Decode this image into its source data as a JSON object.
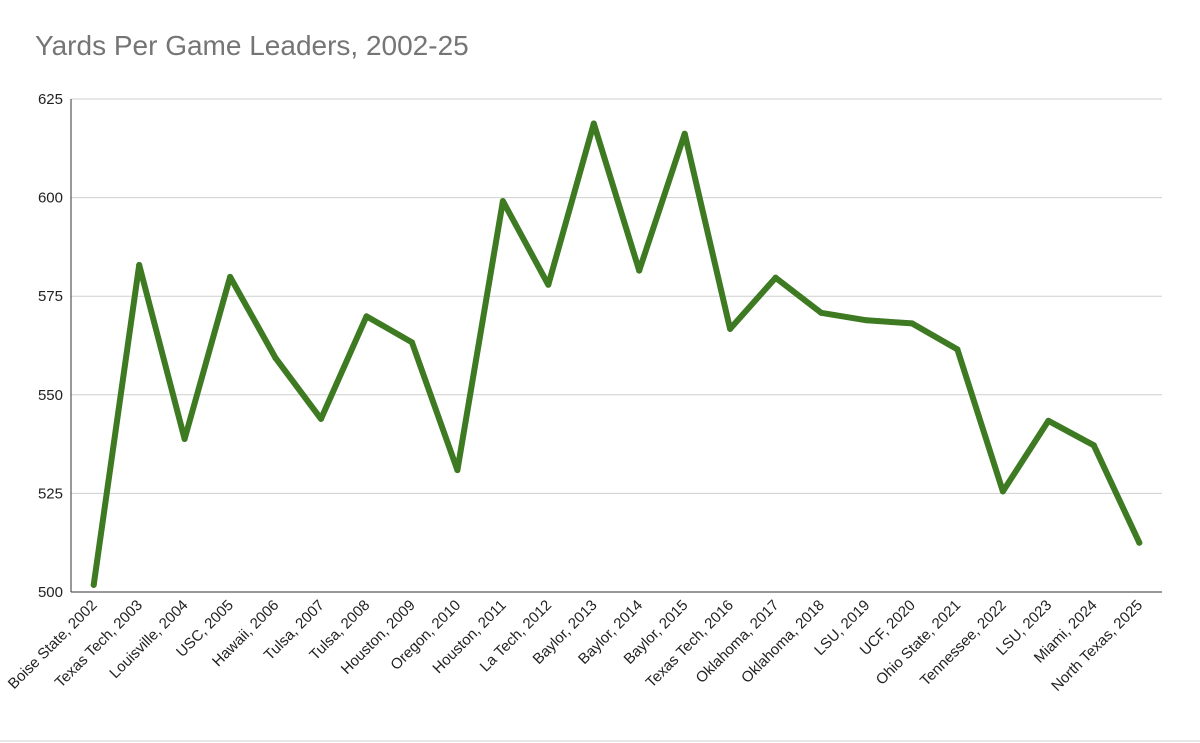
{
  "chart_data": {
    "type": "line",
    "title": "Yards Per Game Leaders, 2002-25",
    "xlabel": "",
    "ylabel": "",
    "ylim": [
      500,
      625
    ],
    "yticks": [
      500,
      525,
      550,
      575,
      600,
      625
    ],
    "grid": true,
    "legend": "none",
    "color": "#3d7a22",
    "categories": [
      "Boise State, 2002",
      "Texas Tech, 2003",
      "Louisville, 2004",
      "USC, 2005",
      "Hawaii, 2006",
      "Tulsa, 2007",
      "Tulsa, 2008",
      "Houston, 2009",
      "Oregon, 2010",
      "Houston, 2011",
      "La Tech, 2012",
      "Baylor, 2013",
      "Baylor, 2014",
      "Baylor, 2015",
      "Texas Tech, 2016",
      "Oklahoma, 2017",
      "Oklahoma, 2018",
      "LSU, 2019",
      "UCF, 2020",
      "Ohio State, 2021",
      "Tennessee, 2022",
      "LSU, 2023",
      "Miami, 2024",
      "North Texas, 2025"
    ],
    "series": [
      {
        "values": [
          501.8,
          582.9,
          538.8,
          579.9,
          559.3,
          543.9,
          569.9,
          563.3,
          530.9,
          599.1,
          577.9,
          618.8,
          581.5,
          616.2,
          566.7,
          579.7,
          570.8,
          568.9,
          568.1,
          561.5,
          525.5,
          543.4,
          537.2,
          512.5
        ]
      }
    ]
  }
}
